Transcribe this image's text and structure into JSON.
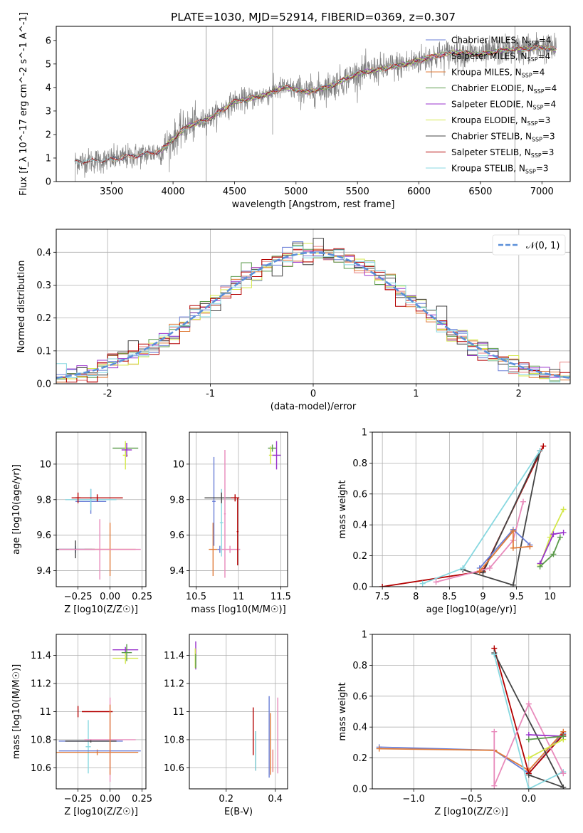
{
  "title": "PLATE=1030, MJD=52914, FIBERID=0369, z=0.307",
  "colors": {
    "chabrier_miles": "#6b7fd7",
    "salpeter_miles": "#e87f7f",
    "kroupa_miles": "#e07b39",
    "chabrier_elodie": "#5a9a4a",
    "salpeter_elodie": "#9933cc",
    "kroupa_elodie": "#d4e84a",
    "chabrier_stelib": "#444444",
    "salpeter_stelib": "#b30000",
    "kroupa_stelib": "#88d8e0",
    "extra_pink": "#e88abb",
    "spectrum": "#808080",
    "normal": "#5b8fd9"
  },
  "chart_data": [
    {
      "id": "spectrum",
      "type": "line",
      "xlabel": "wavelength [Angstrom, rest frame]",
      "ylabel": "Flux [f_λ 10^-17 erg cm^-2 s^-1 A^-1]",
      "xlim": [
        3050,
        7230
      ],
      "ylim": [
        0,
        6.6
      ],
      "xticks": [
        3500,
        4000,
        4500,
        5000,
        5500,
        6000,
        6500,
        7000
      ],
      "yticks": [
        0,
        1,
        2,
        3,
        4,
        5,
        6
      ],
      "legend_position": "right",
      "continuum_knots": [
        [
          3200,
          0.85
        ],
        [
          3450,
          0.9
        ],
        [
          3700,
          1.1
        ],
        [
          3900,
          1.3
        ],
        [
          4100,
          2.3
        ],
        [
          4300,
          2.7
        ],
        [
          4500,
          3.4
        ],
        [
          4700,
          3.6
        ],
        [
          4900,
          4.0
        ],
        [
          5100,
          3.8
        ],
        [
          5300,
          4.1
        ],
        [
          5500,
          4.6
        ],
        [
          5700,
          4.8
        ],
        [
          5900,
          5.0
        ],
        [
          6100,
          5.3
        ],
        [
          6300,
          5.5
        ],
        [
          6500,
          5.4
        ],
        [
          6700,
          5.6
        ],
        [
          7000,
          5.7
        ],
        [
          7120,
          5.6
        ]
      ],
      "legend": [
        {
          "label": "Chabrier MILES, N",
          "sub": "SSP",
          "suffix": "=4",
          "color": "#6b7fd7"
        },
        {
          "label": "Salpeter MILES, N",
          "sub": "SSP",
          "suffix": "=4",
          "color": "#e87f7f"
        },
        {
          "label": "Kroupa MILES, N",
          "sub": "SSP",
          "suffix": "=4",
          "color": "#e07b39"
        },
        {
          "label": "Chabrier ELODIE, N",
          "sub": "SSP",
          "suffix": "=4",
          "color": "#5a9a4a"
        },
        {
          "label": "Salpeter ELODIE, N",
          "sub": "SSP",
          "suffix": "=4",
          "color": "#9933cc"
        },
        {
          "label": "Kroupa ELODIE, N",
          "sub": "SSP",
          "suffix": "=3",
          "color": "#d4e84a"
        },
        {
          "label": "Chabrier STELIB, N",
          "sub": "SSP",
          "suffix": "=3",
          "color": "#444444"
        },
        {
          "label": "Salpeter STELIB, N",
          "sub": "SSP",
          "suffix": "=3",
          "color": "#b30000"
        },
        {
          "label": "Kroupa STELIB, N",
          "sub": "SSP",
          "suffix": "=3",
          "color": "#88d8e0"
        }
      ]
    },
    {
      "id": "residuals",
      "type": "line",
      "xlabel": "(data-model)/error",
      "ylabel": "Normed distribution",
      "xlim": [
        -2.5,
        2.5
      ],
      "ylim": [
        0,
        0.47
      ],
      "xticks": [
        -2,
        -1,
        0,
        1,
        2
      ],
      "yticks": [
        0.0,
        0.1,
        0.2,
        0.3,
        0.4
      ],
      "legend": [
        {
          "label": "𝒩(0, 1)",
          "style": "dashed",
          "color": "#5b8fd9"
        }
      ],
      "legend_position": "top-right"
    },
    {
      "id": "age_vs_Z",
      "type": "scatter",
      "xlabel": "Z [log10(Z/Z☉)]",
      "ylabel": "age  [log10(age/yr)]",
      "xlim": [
        -0.42,
        0.28
      ],
      "ylim": [
        9.31,
        10.18
      ],
      "xticks": [
        -0.25,
        0.0,
        0.25
      ],
      "xticklabels": [
        "−0.25",
        "0.00",
        "0.25"
      ],
      "yticks": [
        9.4,
        9.6,
        9.8,
        10.0
      ],
      "points": [
        {
          "x": -0.27,
          "y": 9.52,
          "xerr": 0.13,
          "yerr": 0.02,
          "color": "#6b7fd7"
        },
        {
          "x": 0.0,
          "y": 9.52,
          "xerr": 0.2,
          "yerr": 0.15,
          "color": "#e07b39"
        },
        {
          "x": -0.27,
          "y": 9.52,
          "xerr": 0.15,
          "yerr": 0.05,
          "color": "#444444"
        },
        {
          "x": -0.08,
          "y": 9.52,
          "xerr": 0.32,
          "yerr": 0.17,
          "color": "#e88abb"
        },
        {
          "x": -0.15,
          "y": 9.79,
          "xerr": 0.12,
          "yerr": 0.07,
          "color": "#6b7fd7"
        },
        {
          "x": -0.15,
          "y": 9.8,
          "xerr": 0.2,
          "yerr": 0.06,
          "color": "#88d8e0"
        },
        {
          "x": -0.25,
          "y": 9.81,
          "xerr": 0.02,
          "yerr": 0.03,
          "color": "#b30000"
        },
        {
          "x": -0.1,
          "y": 9.81,
          "xerr": 0.2,
          "yerr": 0.02,
          "color": "#b30000"
        },
        {
          "x": 0.12,
          "y": 10.09,
          "xerr": 0.1,
          "yerr": 0.03,
          "color": "#5a9a4a"
        },
        {
          "x": 0.12,
          "y": 10.05,
          "xerr": 0.02,
          "yerr": 0.08,
          "color": "#d4e84a"
        },
        {
          "x": 0.13,
          "y": 10.08,
          "xerr": 0.04,
          "yerr": 0.04,
          "color": "#9933cc"
        }
      ]
    },
    {
      "id": "age_vs_mass",
      "type": "scatter",
      "xlabel": "mass [log10(M/M☉)]",
      "xlim": [
        10.42,
        11.58
      ],
      "ylim": [
        9.31,
        10.18
      ],
      "xticks": [
        10.5,
        11.0,
        11.5
      ],
      "yticks": [
        9.4,
        9.6,
        9.8,
        10.0
      ],
      "points": [
        {
          "x": 10.7,
          "y": 9.52,
          "xerr": 0.05,
          "yerr": 0.15,
          "color": "#e07b39"
        },
        {
          "x": 10.78,
          "y": 9.52,
          "xerr": 0.03,
          "yerr": 0.02,
          "color": "#6b7fd7"
        },
        {
          "x": 10.9,
          "y": 9.52,
          "xerr": 0.12,
          "yerr": 0.02,
          "color": "#e88abb"
        },
        {
          "x": 10.8,
          "y": 9.67,
          "xerr": 0.02,
          "yerr": 0.19,
          "color": "#88d8e0"
        },
        {
          "x": 10.71,
          "y": 9.79,
          "xerr": 0.02,
          "yerr": 0.25,
          "color": "#6b7fd7"
        },
        {
          "x": 10.8,
          "y": 9.81,
          "xerr": 0.2,
          "yerr": 0.03,
          "color": "#444444"
        },
        {
          "x": 10.96,
          "y": 9.81,
          "xerr": 0.05,
          "yerr": 0.02,
          "color": "#b30000"
        },
        {
          "x": 10.99,
          "y": 9.62,
          "xerr": 0.01,
          "yerr": 0.19,
          "color": "#b30000"
        },
        {
          "x": 10.84,
          "y": 9.72,
          "xerr": 0.01,
          "yerr": 0.36,
          "color": "#e88abb"
        },
        {
          "x": 11.4,
          "y": 10.09,
          "xerr": 0.05,
          "yerr": 0.02,
          "color": "#5a9a4a"
        },
        {
          "x": 11.38,
          "y": 10.05,
          "xerr": 0.02,
          "yerr": 0.05,
          "color": "#d4e84a"
        },
        {
          "x": 11.45,
          "y": 10.05,
          "xerr": 0.05,
          "yerr": 0.08,
          "color": "#9933cc"
        }
      ]
    },
    {
      "id": "weight_vs_age",
      "type": "line",
      "xlabel": "age  [log10(age/yr)]",
      "ylabel": "mass weight",
      "xlim": [
        7.35,
        10.3
      ],
      "ylim": [
        0,
        1.0
      ],
      "xticks": [
        7.5,
        8.0,
        8.5,
        9.0,
        9.5,
        10.0
      ],
      "yticks": [
        0.0,
        0.2,
        0.4,
        0.6,
        0.8,
        1.0
      ],
      "series": [
        {
          "color": "#b30000",
          "points": [
            [
              7.5,
              0.0
            ],
            [
              9.0,
              0.1
            ],
            [
              9.9,
              0.91
            ]
          ]
        },
        {
          "color": "#444444",
          "points": [
            [
              8.7,
              0.11
            ],
            [
              9.45,
              0.01
            ],
            [
              9.85,
              0.88
            ],
            [
              9.0,
              0.09
            ]
          ]
        },
        {
          "color": "#88d8e0",
          "points": [
            [
              8.1,
              0.02
            ],
            [
              8.7,
              0.12
            ],
            [
              9.85,
              0.88
            ]
          ]
        },
        {
          "color": "#e88abb",
          "points": [
            [
              8.3,
              0.03
            ],
            [
              9.1,
              0.12
            ],
            [
              9.45,
              0.3
            ],
            [
              9.6,
              0.55
            ]
          ]
        },
        {
          "color": "#6b7fd7",
          "points": [
            [
              8.95,
              0.12
            ],
            [
              9.45,
              0.37
            ],
            [
              9.7,
              0.27
            ]
          ]
        },
        {
          "color": "#e07b39",
          "points": [
            [
              8.95,
              0.1
            ],
            [
              9.45,
              0.36
            ],
            [
              9.45,
              0.25
            ],
            [
              9.7,
              0.26
            ]
          ]
        },
        {
          "color": "#d4e84a",
          "points": [
            [
              9.85,
              0.14
            ],
            [
              10.0,
              0.32
            ],
            [
              10.2,
              0.5
            ]
          ]
        },
        {
          "color": "#9933cc",
          "points": [
            [
              9.85,
              0.15
            ],
            [
              10.05,
              0.34
            ],
            [
              10.2,
              0.35
            ]
          ]
        },
        {
          "color": "#5a9a4a",
          "points": [
            [
              9.85,
              0.13
            ],
            [
              10.05,
              0.21
            ],
            [
              10.15,
              0.32
            ]
          ]
        }
      ]
    },
    {
      "id": "mass_vs_Z",
      "type": "scatter",
      "xlabel": "Z [log10(Z/Z☉)]",
      "ylabel": "mass [log10(M/M☉)]",
      "xlim": [
        -0.42,
        0.28
      ],
      "ylim": [
        10.45,
        11.55
      ],
      "xticks": [
        -0.25,
        0.0,
        0.25
      ],
      "xticklabels": [
        "−0.25",
        "0.00",
        "0.25"
      ],
      "yticks": [
        10.6,
        10.8,
        11.0,
        11.2,
        11.4
      ],
      "points": [
        {
          "x": -0.25,
          "y": 11.0,
          "xerr": 0.0,
          "yerr": 0.04,
          "color": "#b30000"
        },
        {
          "x": -0.1,
          "y": 11.0,
          "xerr": 0.12,
          "yerr": 0.0,
          "color": "#b30000"
        },
        {
          "x": -0.15,
          "y": 10.79,
          "xerr": 0.25,
          "yerr": 0.0,
          "color": "#6b7fd7"
        },
        {
          "x": -0.17,
          "y": 10.75,
          "xerr": 0.02,
          "yerr": 0.19,
          "color": "#88d8e0"
        },
        {
          "x": -0.15,
          "y": 10.79,
          "xerr": 0.2,
          "yerr": 0.01,
          "color": "#444444"
        },
        {
          "x": -0.1,
          "y": 10.71,
          "xerr": 0.32,
          "yerr": 0.02,
          "color": "#e07b39"
        },
        {
          "x": -0.08,
          "y": 10.72,
          "xerr": 0.32,
          "yerr": 0.0,
          "color": "#6b7fd7"
        },
        {
          "x": 0.0,
          "y": 10.8,
          "xerr": 0.2,
          "yerr": 0.3,
          "color": "#e88abb"
        },
        {
          "x": 0.0,
          "y": 10.8,
          "xerr": 0.0,
          "yerr": 0.25,
          "color": "#e07b39"
        },
        {
          "x": 0.12,
          "y": 11.44,
          "xerr": 0.1,
          "yerr": 0.02,
          "color": "#9933cc"
        },
        {
          "x": 0.12,
          "y": 11.38,
          "xerr": 0.1,
          "yerr": 0.04,
          "color": "#d4e84a"
        },
        {
          "x": 0.13,
          "y": 11.42,
          "xerr": 0.04,
          "yerr": 0.06,
          "color": "#5a9a4a"
        }
      ]
    },
    {
      "id": "mass_vs_ebv",
      "type": "scatter",
      "xlabel": "E(B-V)",
      "xlim": [
        0.05,
        0.45
      ],
      "ylim": [
        10.45,
        11.55
      ],
      "xticks": [
        0.2,
        0.4
      ],
      "yticks": [
        10.6,
        10.8,
        11.0,
        11.2,
        11.4
      ],
      "points": [
        {
          "x": 0.076,
          "y": 11.4,
          "xerr": 0.0,
          "yerr": 0.1,
          "color": "#9933cc"
        },
        {
          "x": 0.074,
          "y": 11.38,
          "xerr": 0.0,
          "yerr": 0.07,
          "color": "#d4e84a"
        },
        {
          "x": 0.076,
          "y": 11.36,
          "xerr": 0.0,
          "yerr": 0.05,
          "color": "#5a9a4a"
        },
        {
          "x": 0.31,
          "y": 10.86,
          "xerr": 0.0,
          "yerr": 0.17,
          "color": "#b30000"
        },
        {
          "x": 0.32,
          "y": 10.72,
          "xerr": 0.0,
          "yerr": 0.14,
          "color": "#444444"
        },
        {
          "x": 0.32,
          "y": 10.72,
          "xerr": 0.0,
          "yerr": 0.14,
          "color": "#88d8e0"
        },
        {
          "x": 0.375,
          "y": 10.82,
          "xerr": 0.0,
          "yerr": 0.29,
          "color": "#6b7fd7"
        },
        {
          "x": 0.38,
          "y": 10.77,
          "xerr": 0.0,
          "yerr": 0.22,
          "color": "#e07b39"
        },
        {
          "x": 0.41,
          "y": 10.83,
          "xerr": 0.0,
          "yerr": 0.27,
          "color": "#e88abb"
        },
        {
          "x": 0.39,
          "y": 10.65,
          "xerr": 0.0,
          "yerr": 0.08,
          "color": "#e87f7f"
        }
      ]
    },
    {
      "id": "weight_vs_Z",
      "type": "line",
      "xlabel": "Z [log10(Z/Z☉)]",
      "ylabel": "mass weight",
      "xlim": [
        -1.36,
        0.36
      ],
      "ylim": [
        0,
        1.0
      ],
      "xticks": [
        -1.0,
        -0.5,
        0.0
      ],
      "xticklabels": [
        "−1.0",
        "−0.5",
        "0.0"
      ],
      "yticks": [
        0.0,
        0.2,
        0.4,
        0.6,
        0.8,
        1.0
      ],
      "series": [
        {
          "color": "#6b7fd7",
          "points": [
            [
              -1.3,
              0.27
            ],
            [
              -0.3,
              0.25
            ],
            [
              0.0,
              0.1
            ],
            [
              0.3,
              0.36
            ]
          ]
        },
        {
          "color": "#e07b39",
          "points": [
            [
              -1.3,
              0.26
            ],
            [
              -0.3,
              0.25
            ],
            [
              0.0,
              0.12
            ],
            [
              0.3,
              0.37
            ]
          ]
        },
        {
          "color": "#b30000",
          "points": [
            [
              -0.3,
              0.91
            ],
            [
              0.0,
              0.1
            ],
            [
              0.3,
              0.35
            ]
          ]
        },
        {
          "color": "#444444",
          "points": [
            [
              -0.3,
              0.88
            ],
            [
              0.3,
              0.01
            ],
            [
              0.0,
              0.09
            ]
          ]
        },
        {
          "color": "#88d8e0",
          "points": [
            [
              -0.3,
              0.87
            ],
            [
              0.0,
              0.0
            ],
            [
              0.3,
              0.11
            ]
          ]
        },
        {
          "color": "#e88abb",
          "points": [
            [
              -0.3,
              0.37
            ],
            [
              -0.3,
              0.02
            ],
            [
              0.0,
              0.55
            ],
            [
              0.3,
              0.1
            ]
          ]
        },
        {
          "color": "#9933cc",
          "points": [
            [
              0.0,
              0.35
            ],
            [
              0.3,
              0.34
            ]
          ]
        },
        {
          "color": "#d4e84a",
          "points": [
            [
              0.0,
              0.2
            ],
            [
              0.3,
              0.32
            ]
          ]
        },
        {
          "color": "#5a9a4a",
          "points": [
            [
              0.0,
              0.32
            ],
            [
              0.3,
              0.34
            ]
          ]
        }
      ]
    }
  ]
}
